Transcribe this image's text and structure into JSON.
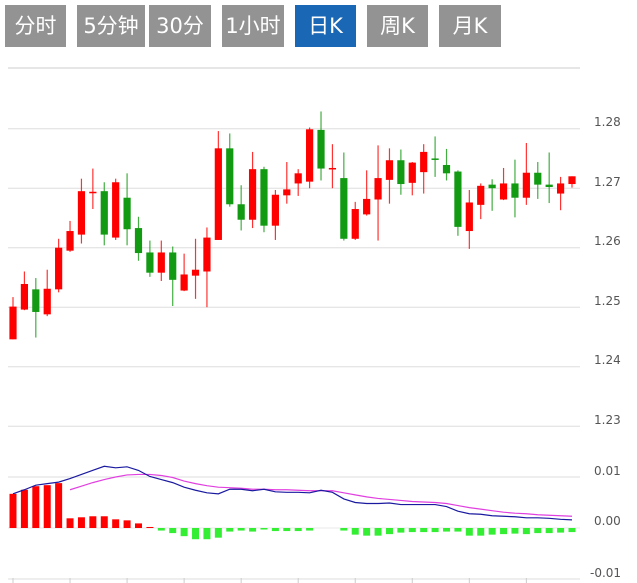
{
  "tabs": [
    {
      "label": "分时线",
      "active": false
    },
    {
      "label": "5分钟",
      "active": false
    },
    {
      "label": "30分钟",
      "active": false
    },
    {
      "label": "1小时",
      "active": false
    },
    {
      "label": "日K",
      "active": true
    },
    {
      "label": "周K",
      "active": false
    },
    {
      "label": "月K",
      "active": false
    }
  ],
  "colors": {
    "tab_bg": "#939393",
    "tab_active_bg": "#1a67b5",
    "up": "#ff0000",
    "down": "#139a13",
    "macd_up": "#ff0000",
    "macd_down": "#33ee33",
    "dif": "#1a1aa0",
    "dea": "#e040e0",
    "grid": "#dddddd"
  },
  "chart_data": [
    {
      "type": "candlestick",
      "ylim": [
        1.23,
        1.29
      ],
      "yticks": [
        "1.28",
        "1.27",
        "1.26",
        "1.25",
        "1.24",
        "1.23"
      ],
      "grid": true,
      "candles": [
        [
          1.2446,
          1.2501,
          1.2517,
          1.2446
        ],
        [
          1.2496,
          1.2539,
          1.256,
          1.2495
        ],
        [
          1.253,
          1.2492,
          1.2549,
          1.2449
        ],
        [
          1.2488,
          1.2531,
          1.2563,
          1.2485
        ],
        [
          1.253,
          1.26,
          1.2615,
          1.2525
        ],
        [
          1.2595,
          1.2628,
          1.2645,
          1.2593
        ],
        [
          1.2622,
          1.2695,
          1.2716,
          1.2607
        ],
        [
          1.2693,
          1.2694,
          1.2733,
          1.2665
        ],
        [
          1.2695,
          1.2622,
          1.271,
          1.2604
        ],
        [
          1.2617,
          1.271,
          1.2716,
          1.2613
        ],
        [
          1.2684,
          1.2631,
          1.2725,
          1.2604
        ],
        [
          1.2633,
          1.2591,
          1.2652,
          1.2578
        ],
        [
          1.2592,
          1.2558,
          1.2612,
          1.2551
        ],
        [
          1.2558,
          1.2592,
          1.2612,
          1.2544
        ],
        [
          1.2592,
          1.2546,
          1.2602,
          1.2502
        ],
        [
          1.2528,
          1.2555,
          1.259,
          1.2527
        ],
        [
          1.2553,
          1.2563,
          1.2615,
          1.2514
        ],
        [
          1.256,
          1.2617,
          1.2634,
          1.25
        ],
        [
          1.2613,
          1.2767,
          1.2796,
          1.2613
        ],
        [
          1.2767,
          1.2673,
          1.2792,
          1.2669
        ],
        [
          1.2673,
          1.2647,
          1.2705,
          1.2629
        ],
        [
          1.2647,
          1.2732,
          1.2761,
          1.2633
        ],
        [
          1.2732,
          1.2637,
          1.2736,
          1.2626
        ],
        [
          1.2637,
          1.2689,
          1.2697,
          1.2613
        ],
        [
          1.2688,
          1.2698,
          1.2744,
          1.2674
        ],
        [
          1.2708,
          1.2725,
          1.2732,
          1.2687
        ],
        [
          1.2711,
          1.2799,
          1.2802,
          1.27
        ],
        [
          1.2798,
          1.2733,
          1.2829,
          1.2713
        ],
        [
          1.2733,
          1.2734,
          1.2774,
          1.27
        ],
        [
          1.2717,
          1.2615,
          1.276,
          1.2612
        ],
        [
          1.2615,
          1.2665,
          1.2677,
          1.2613
        ],
        [
          1.2656,
          1.2682,
          1.273,
          1.2654
        ],
        [
          1.2681,
          1.2717,
          1.2772,
          1.2612
        ],
        [
          1.2714,
          1.2747,
          1.2767,
          1.2674
        ],
        [
          1.2747,
          1.2707,
          1.2765,
          1.2689
        ],
        [
          1.2709,
          1.2743,
          1.2744,
          1.2688
        ],
        [
          1.2727,
          1.2761,
          1.2774,
          1.2691
        ],
        [
          1.275,
          1.2748,
          1.2787,
          1.2719
        ],
        [
          1.2739,
          1.2725,
          1.2766,
          1.2713
        ],
        [
          1.2728,
          1.2635,
          1.273,
          1.262
        ],
        [
          1.2628,
          1.2676,
          1.2697,
          1.2598
        ],
        [
          1.2672,
          1.2704,
          1.2708,
          1.2648
        ],
        [
          1.2706,
          1.27,
          1.2715,
          1.2662
        ],
        [
          1.2681,
          1.2708,
          1.2734,
          1.268
        ],
        [
          1.2708,
          1.2684,
          1.2748,
          1.2651
        ],
        [
          1.2684,
          1.2726,
          1.2776,
          1.2672
        ],
        [
          1.2726,
          1.2706,
          1.2744,
          1.2682
        ],
        [
          1.2706,
          1.2702,
          1.276,
          1.2675
        ],
        [
          1.2691,
          1.2708,
          1.2719,
          1.2663
        ],
        [
          1.2707,
          1.272,
          1.272,
          1.2701
        ]
      ],
      "candle_format": [
        "open",
        "close",
        "high",
        "low"
      ]
    },
    {
      "type": "macd",
      "ylim": [
        -0.01,
        0.01
      ],
      "yticks": [
        "0.01",
        "0.00",
        "-0.01"
      ],
      "histogram": [
        0.0067,
        0.0075,
        0.0082,
        0.0084,
        0.0088,
        0.0019,
        0.0021,
        0.0023,
        0.0023,
        0.0017,
        0.0015,
        0.0009,
        0.0002,
        -0.0005,
        -0.001,
        -0.0016,
        -0.0022,
        -0.0022,
        -0.0019,
        -0.0007,
        -0.0005,
        -0.0007,
        -0.0003,
        -0.0006,
        -0.0006,
        -0.0006,
        -0.0005,
        0,
        0,
        -0.0005,
        -0.0013,
        -0.0015,
        -0.0015,
        -0.0012,
        -0.0009,
        -0.0008,
        -0.0008,
        -0.0008,
        -0.0007,
        -0.0007,
        -0.0015,
        -0.0015,
        -0.0013,
        -0.0012,
        -0.0011,
        -0.0012,
        -0.001,
        -0.001,
        -0.0009,
        -0.0008
      ],
      "dif": [
        0.0067,
        0.0075,
        0.0084,
        0.0087,
        0.009,
        0.0097,
        0.0105,
        0.0113,
        0.0121,
        0.0118,
        0.012,
        0.0113,
        0.0101,
        0.0095,
        0.0089,
        0.008,
        0.0074,
        0.0069,
        0.0067,
        0.0076,
        0.0076,
        0.0073,
        0.0076,
        0.0071,
        0.007,
        0.007,
        0.0069,
        0.0074,
        0.007,
        0.0057,
        0.005,
        0.0048,
        0.0048,
        0.0049,
        0.0046,
        0.0046,
        0.0046,
        0.0046,
        0.0042,
        0.0033,
        0.0028,
        0.0027,
        0.0024,
        0.0023,
        0.0022,
        0.002,
        0.002,
        0.0019,
        0.0017,
        0.0016
      ],
      "dea": [
        null,
        null,
        null,
        null,
        null,
        0.0075,
        0.0082,
        0.0089,
        0.0095,
        0.01,
        0.0104,
        0.0105,
        0.0105,
        0.0103,
        0.0099,
        0.0092,
        0.0087,
        0.0083,
        0.008,
        0.0079,
        0.0078,
        0.0076,
        0.0076,
        0.0075,
        0.0075,
        0.0074,
        0.0073,
        0.0073,
        0.0073,
        0.0069,
        0.0065,
        0.0061,
        0.0058,
        0.0056,
        0.0054,
        0.0052,
        0.0051,
        0.005,
        0.0048,
        0.0044,
        0.004,
        0.0037,
        0.0034,
        0.0031,
        0.0029,
        0.0028,
        0.0026,
        0.0025,
        0.0024,
        0.0023
      ]
    }
  ]
}
